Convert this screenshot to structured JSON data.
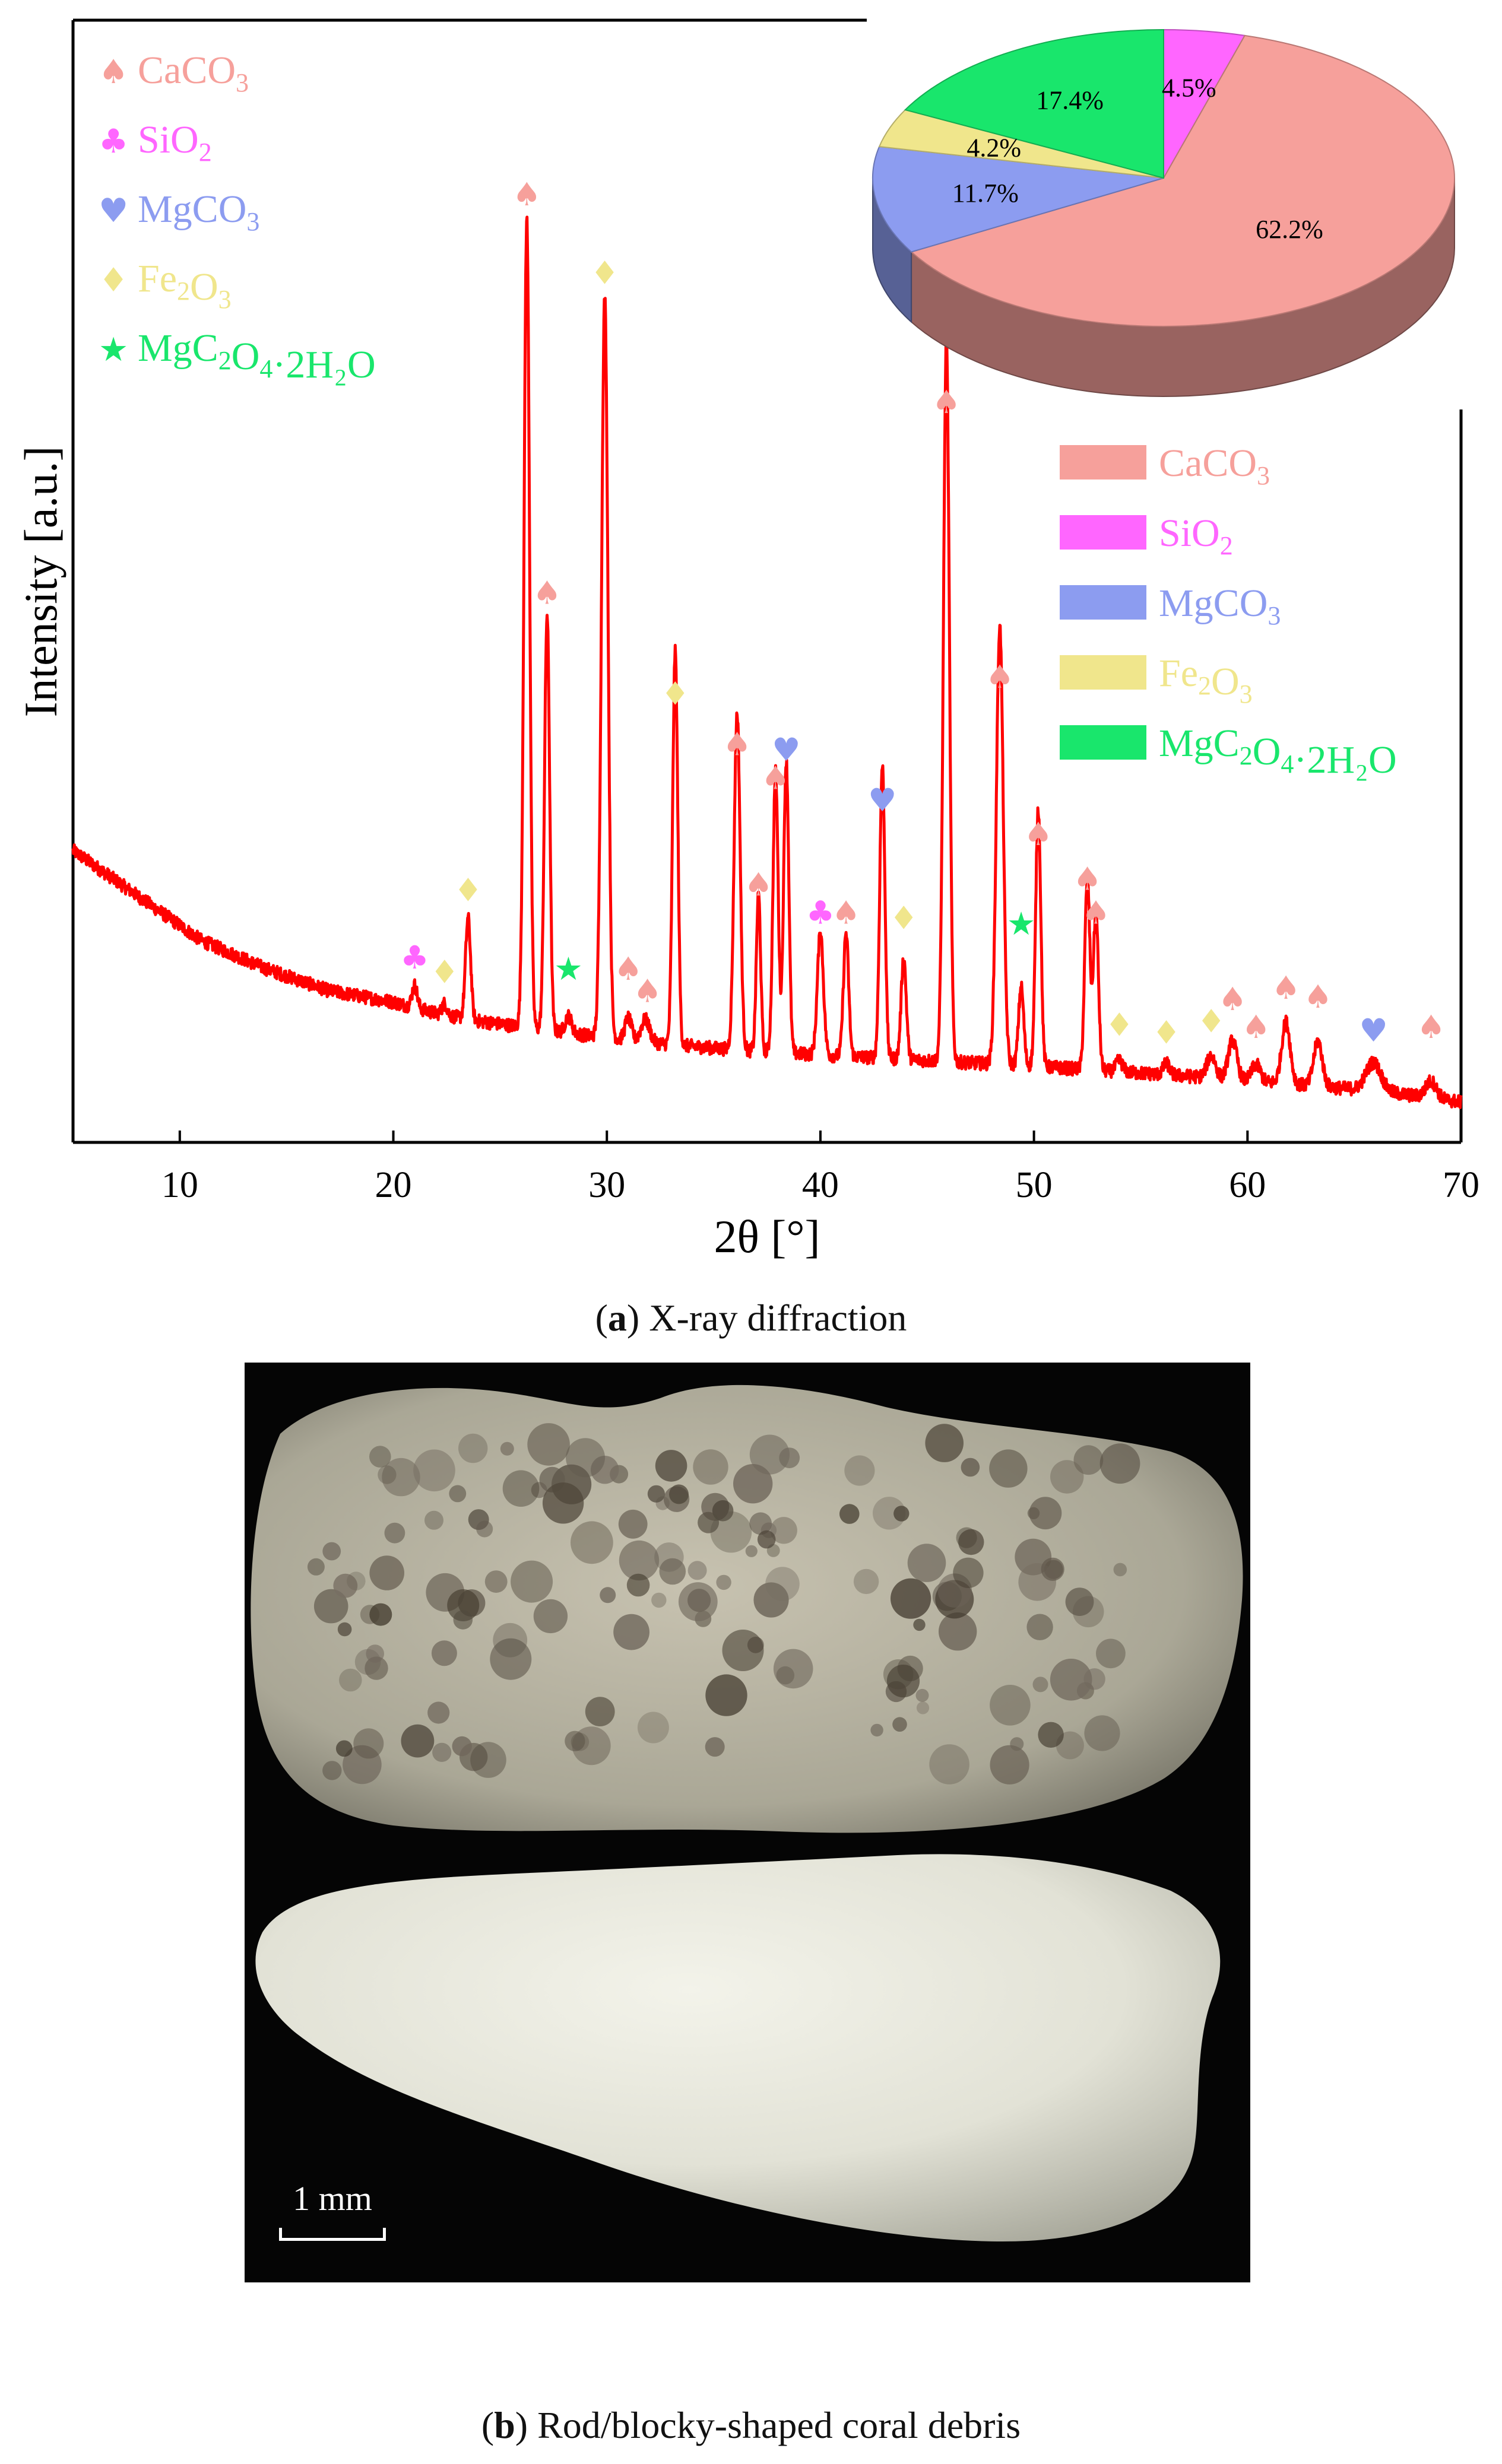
{
  "chart_data": {
    "type": "line",
    "panel": "a",
    "caption_letter": "a",
    "caption_text": ") X-ray diffraction",
    "xlabel": "2θ [°]",
    "ylabel": "Intensity [a.u.]",
    "xlim": [
      5,
      70
    ],
    "ylim": [
      0,
      100
    ],
    "xticks": [
      10,
      20,
      30,
      40,
      50,
      60,
      70
    ],
    "line_color": "#ff0000",
    "baseline_anchors": [
      [
        5,
        26
      ],
      [
        8,
        22
      ],
      [
        11,
        18
      ],
      [
        14,
        15.5
      ],
      [
        17,
        13.5
      ],
      [
        20,
        12.5
      ],
      [
        22,
        11.5
      ],
      [
        24,
        10.8
      ],
      [
        26,
        10.3
      ],
      [
        28,
        9.8
      ],
      [
        30,
        9.3
      ],
      [
        32,
        8.9
      ],
      [
        35,
        8.4
      ],
      [
        38,
        8
      ],
      [
        42,
        7.6
      ],
      [
        46,
        7.2
      ],
      [
        50,
        6.8
      ],
      [
        54,
        6.3
      ],
      [
        58,
        5.8
      ],
      [
        62,
        5.2
      ],
      [
        66,
        4.6
      ],
      [
        70,
        3.6
      ]
    ],
    "peaks": [
      {
        "x": 21.0,
        "h": 2,
        "w": 0.12
      },
      {
        "x": 22.4,
        "h": 1,
        "w": 0.12
      },
      {
        "x": 23.5,
        "h": 9,
        "w": 0.12
      },
      {
        "x": 26.25,
        "h": 72,
        "w": 0.13
      },
      {
        "x": 27.2,
        "h": 37,
        "w": 0.12
      },
      {
        "x": 28.2,
        "h": 1.5,
        "w": 0.15
      },
      {
        "x": 29.9,
        "h": 66,
        "w": 0.15
      },
      {
        "x": 31.0,
        "h": 2,
        "w": 0.15
      },
      {
        "x": 31.8,
        "h": 2,
        "w": 0.2
      },
      {
        "x": 33.2,
        "h": 35,
        "w": 0.12
      },
      {
        "x": 36.1,
        "h": 30,
        "w": 0.14
      },
      {
        "x": 37.1,
        "h": 14,
        "w": 0.1
      },
      {
        "x": 37.9,
        "h": 25,
        "w": 0.12
      },
      {
        "x": 38.4,
        "h": 26,
        "w": 0.12
      },
      {
        "x": 40.0,
        "h": 11,
        "w": 0.14
      },
      {
        "x": 41.2,
        "h": 11,
        "w": 0.12
      },
      {
        "x": 42.9,
        "h": 26,
        "w": 0.12
      },
      {
        "x": 43.9,
        "h": 9,
        "w": 0.12
      },
      {
        "x": 45.9,
        "h": 64,
        "w": 0.14
      },
      {
        "x": 48.4,
        "h": 39,
        "w": 0.16
      },
      {
        "x": 49.4,
        "h": 7,
        "w": 0.12
      },
      {
        "x": 50.2,
        "h": 23,
        "w": 0.12
      },
      {
        "x": 52.5,
        "h": 17,
        "w": 0.12
      },
      {
        "x": 52.9,
        "h": 14,
        "w": 0.12
      },
      {
        "x": 54.0,
        "h": 1,
        "w": 0.15
      },
      {
        "x": 56.2,
        "h": 1,
        "w": 0.15
      },
      {
        "x": 58.3,
        "h": 2,
        "w": 0.2
      },
      {
        "x": 59.3,
        "h": 3.5,
        "w": 0.2
      },
      {
        "x": 60.4,
        "h": 1.5,
        "w": 0.2
      },
      {
        "x": 61.8,
        "h": 5.5,
        "w": 0.2
      },
      {
        "x": 63.3,
        "h": 4,
        "w": 0.2
      },
      {
        "x": 65.9,
        "h": 2.5,
        "w": 0.35
      },
      {
        "x": 68.6,
        "h": 1.5,
        "w": 0.25
      }
    ],
    "phases": [
      {
        "name": "CaCO3",
        "label": "CaCO",
        "sub1": "3",
        "label2": "",
        "sub2": "",
        "label3": "",
        "symbol": "♠",
        "color": "#f6a09b"
      },
      {
        "name": "SiO2",
        "label": "SiO",
        "sub1": "2",
        "label2": "",
        "sub2": "",
        "label3": "",
        "symbol": "♣",
        "color": "#ff66ff"
      },
      {
        "name": "MgCO3",
        "label": "MgCO",
        "sub1": "3",
        "label2": "",
        "sub2": "",
        "label3": "",
        "symbol": "♥",
        "color": "#8c9cf0"
      },
      {
        "name": "Fe2O3",
        "label": "Fe",
        "sub1": "2",
        "label2": "O",
        "sub2": "3",
        "label3": "",
        "symbol": "♦",
        "color": "#f0e68c"
      },
      {
        "name": "MgC2O4·2H2O",
        "label": "MgC",
        "sub1": "2",
        "label2": "O",
        "sub2": "4",
        "label3": "·2H₂O",
        "symbol": "★",
        "color": "#19e66c"
      }
    ],
    "annotations": [
      {
        "phase": 1,
        "x": 21.0,
        "y": 15.5
      },
      {
        "phase": 3,
        "x": 22.4,
        "y": 14.2
      },
      {
        "phase": 3,
        "x": 23.5,
        "y": 21.5
      },
      {
        "phase": 0,
        "x": 26.25,
        "y": 83.5
      },
      {
        "phase": 0,
        "x": 27.2,
        "y": 48
      },
      {
        "phase": 4,
        "x": 28.2,
        "y": 14.5
      },
      {
        "phase": 3,
        "x": 29.9,
        "y": 76.5
      },
      {
        "phase": 0,
        "x": 31.0,
        "y": 14.5
      },
      {
        "phase": 0,
        "x": 31.9,
        "y": 12.5
      },
      {
        "phase": 3,
        "x": 33.2,
        "y": 39
      },
      {
        "phase": 0,
        "x": 36.1,
        "y": 34.5
      },
      {
        "phase": 0,
        "x": 37.1,
        "y": 22
      },
      {
        "phase": 0,
        "x": 37.9,
        "y": 31.5
      },
      {
        "phase": 2,
        "x": 38.4,
        "y": 34
      },
      {
        "phase": 1,
        "x": 40.0,
        "y": 19.5
      },
      {
        "phase": 0,
        "x": 41.2,
        "y": 19.5
      },
      {
        "phase": 2,
        "x": 42.9,
        "y": 29.5
      },
      {
        "phase": 3,
        "x": 43.9,
        "y": 19
      },
      {
        "phase": 0,
        "x": 45.9,
        "y": 65
      },
      {
        "phase": 0,
        "x": 48.4,
        "y": 40.5
      },
      {
        "phase": 4,
        "x": 49.4,
        "y": 18.5
      },
      {
        "phase": 0,
        "x": 50.2,
        "y": 26.5
      },
      {
        "phase": 0,
        "x": 52.5,
        "y": 22.5
      },
      {
        "phase": 0,
        "x": 52.9,
        "y": 19.5
      },
      {
        "phase": 3,
        "x": 54.0,
        "y": 9.5
      },
      {
        "phase": 3,
        "x": 56.2,
        "y": 8.8
      },
      {
        "phase": 3,
        "x": 58.3,
        "y": 9.8
      },
      {
        "phase": 0,
        "x": 59.3,
        "y": 11.8
      },
      {
        "phase": 0,
        "x": 60.4,
        "y": 9.3
      },
      {
        "phase": 0,
        "x": 61.8,
        "y": 12.8
      },
      {
        "phase": 0,
        "x": 63.3,
        "y": 12
      },
      {
        "phase": 2,
        "x": 65.9,
        "y": 9
      },
      {
        "phase": 0,
        "x": 68.6,
        "y": 9.3
      }
    ],
    "pie": {
      "type": "pie",
      "style": "3d",
      "slices": [
        {
          "phase": 1,
          "value": 4.5,
          "label": "4.5%"
        },
        {
          "phase": 0,
          "value": 62.2,
          "label": "62.2%"
        },
        {
          "phase": 2,
          "value": 11.7,
          "label": "11.7%"
        },
        {
          "phase": 3,
          "value": 4.2,
          "label": "4.2%"
        },
        {
          "phase": 4,
          "value": 17.4,
          "label": "17.4%"
        }
      ],
      "legend_position": "right, below pie"
    }
  },
  "photo": {
    "panel": "b",
    "caption_letter": "b",
    "caption_text": ") Rod/blocky-shaped coral debris",
    "scale_bar_label": "1 mm",
    "background_color": "#050505",
    "upper_fragment_color": "#b5b2a2",
    "lower_fragment_color": "#e6e6dc"
  }
}
